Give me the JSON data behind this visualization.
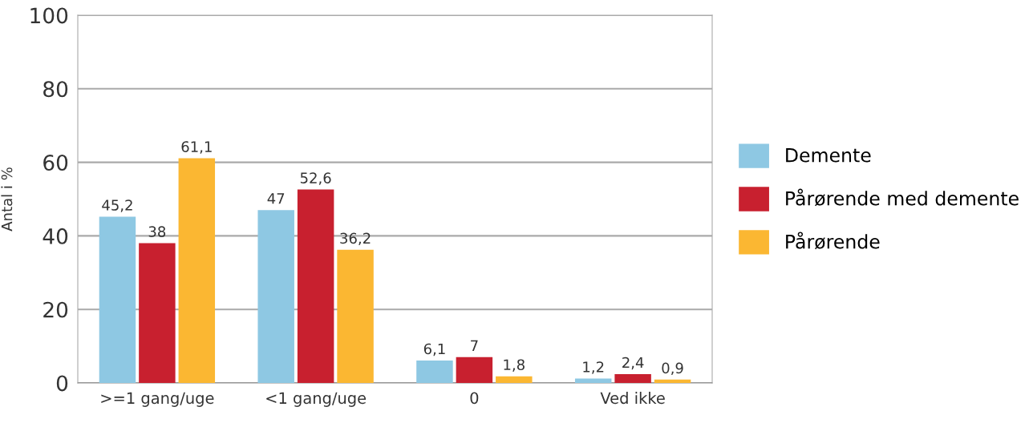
{
  "chart_data": {
    "type": "bar",
    "ylabel": "Antal i %",
    "categories": [
      ">=1 gang/uge",
      "<1 gang/uge",
      "0",
      "Ved ikke"
    ],
    "series": [
      {
        "name": "Demente",
        "color": "#8ec8e3",
        "values": [
          45.2,
          47,
          6.1,
          1.2
        ],
        "value_labels": [
          "45,2",
          "47",
          "6,1",
          "1,2"
        ]
      },
      {
        "name": "Pårørende med demente",
        "color": "#c8202f",
        "values": [
          38,
          52.6,
          7,
          2.4
        ],
        "value_labels": [
          "38",
          "52,6",
          "7",
          "2,4"
        ]
      },
      {
        "name": "Pårørende",
        "color": "#fbb732",
        "values": [
          61.1,
          36.2,
          1.8,
          0.9
        ],
        "value_labels": [
          "61,1",
          "36,2",
          "1,8",
          "0,9"
        ]
      }
    ],
    "ylim": [
      0,
      100
    ],
    "yticks": [
      0,
      20,
      40,
      60,
      80,
      100
    ],
    "grid": "y",
    "legend": "right"
  }
}
